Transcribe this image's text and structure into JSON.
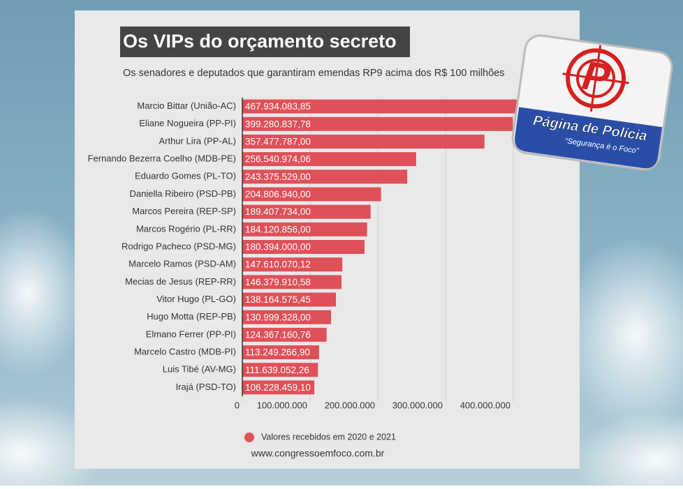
{
  "chart_data": {
    "type": "hbar",
    "title": "Os VIPs do orçamento secreto",
    "subtitle": "Os senadores e deputados que garantiram emendas RP9 acima dos R$ 100 milhões",
    "categories": [
      "Marcio Bittar (União-AC)",
      "Eliane Nogueira (PP-PI)",
      "Arthur Lira (PP-AL)",
      "Fernando Bezerra Coelho (MDB-PE)",
      "Eduardo Gomes (PL-TO)",
      "Daniella Ribeiro (PSD-PB)",
      "Marcos Pereira (REP-SP)",
      "Marcos Rogério (PL-RR)",
      "Rodrigo Pacheco (PSD-MG)",
      "Marcelo Ramos (PSD-AM)",
      "Mecias de Jesus (REP-RR)",
      "Vitor Hugo (PL-GO)",
      "Hugo Motta (REP-PB)",
      "Elmano Ferrer (PP-PI)",
      "Marcelo Castro (MDB-PI)",
      "Luis Tibé (AV-MG)",
      "Irajá (PSD-TO)"
    ],
    "series": [
      {
        "name": "Valores recebidos em 2020 e 2021",
        "color": "#df5058",
        "values": [
          467934083.85,
          399280837.78,
          357477787.0,
          256540974.06,
          243375529.0,
          204806940.0,
          189407734.0,
          184120856.0,
          180394000.0,
          147610070.12,
          146379910.58,
          138164575.45,
          130999328.0,
          124367160.76,
          113249266.9,
          111639052.26,
          106228459.1
        ],
        "value_labels": [
          "467.934.083,85",
          "399.280.837,78",
          "357.477.787,00",
          "256.540.974,06",
          "243.375.529,00",
          "204.806.940,00",
          "189.407.734,00",
          "184.120.856,00",
          "180.394.000,00",
          "147.610.070,12",
          "146.379.910,58",
          "138.164.575,45",
          "130.999.328,00",
          "124.367.160,76",
          "113.249.266,90",
          "111.639.052,26",
          "106.228.459,10"
        ]
      }
    ],
    "xlim": [
      0,
      480000000
    ],
    "xticks": [
      0,
      {
        "value": 100000000,
        "label": "100.000.000"
      },
      {
        "value": 200000000,
        "label": "200.000.000"
      },
      {
        "value": 300000000,
        "label": "300.000.000"
      },
      {
        "value": 400000000,
        "label": "400.000.000"
      }
    ],
    "grid": true,
    "legend": "bottom",
    "source": "www.congressoemfoco.com.br"
  },
  "logo": {
    "title": "Página de Polícia",
    "slogan": "“Segurança é o Foco”"
  }
}
